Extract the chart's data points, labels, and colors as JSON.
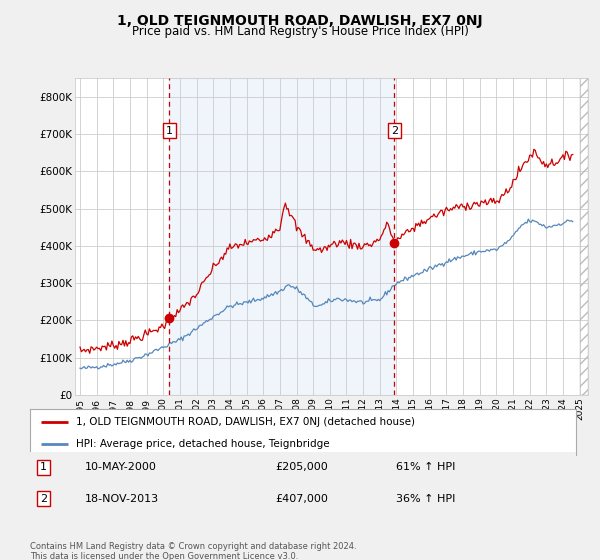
{
  "title": "1, OLD TEIGNMOUTH ROAD, DAWLISH, EX7 0NJ",
  "subtitle": "Price paid vs. HM Land Registry's House Price Index (HPI)",
  "ylabel_ticks": [
    "£0",
    "£100K",
    "£200K",
    "£300K",
    "£400K",
    "£500K",
    "£600K",
    "£700K",
    "£800K"
  ],
  "ytick_vals": [
    0,
    100000,
    200000,
    300000,
    400000,
    500000,
    600000,
    700000,
    800000
  ],
  "ylim": [
    0,
    850000
  ],
  "xlim_start": 1994.7,
  "xlim_end": 2025.5,
  "sale1_x": 2000.36,
  "sale1_y": 205000,
  "sale2_x": 2013.88,
  "sale2_y": 407000,
  "sale1_label": "1",
  "sale2_label": "2",
  "sale1_date": "10-MAY-2000",
  "sale1_price": "£205,000",
  "sale1_hpi": "61% ↑ HPI",
  "sale2_date": "18-NOV-2013",
  "sale2_price": "£407,000",
  "sale2_hpi": "36% ↑ HPI",
  "line1_color": "#cc0000",
  "line2_color": "#5588bb",
  "dashed_color": "#cc0000",
  "shading_color": "#ddeeff",
  "background_color": "#f0f0f0",
  "plot_bg_color": "#ffffff",
  "legend_line1": "1, OLD TEIGNMOUTH ROAD, DAWLISH, EX7 0NJ (detached house)",
  "legend_line2": "HPI: Average price, detached house, Teignbridge",
  "footnote": "Contains HM Land Registry data © Crown copyright and database right 2024.\nThis data is licensed under the Open Government Licence v3.0.",
  "title_fontsize": 10,
  "subtitle_fontsize": 8.5,
  "tick_fontsize": 7.5,
  "xtick_years": [
    1995,
    1996,
    1997,
    1998,
    1999,
    2000,
    2001,
    2002,
    2003,
    2004,
    2005,
    2006,
    2007,
    2008,
    2009,
    2010,
    2011,
    2012,
    2013,
    2014,
    2015,
    2016,
    2017,
    2018,
    2019,
    2020,
    2021,
    2022,
    2023,
    2024,
    2025
  ]
}
